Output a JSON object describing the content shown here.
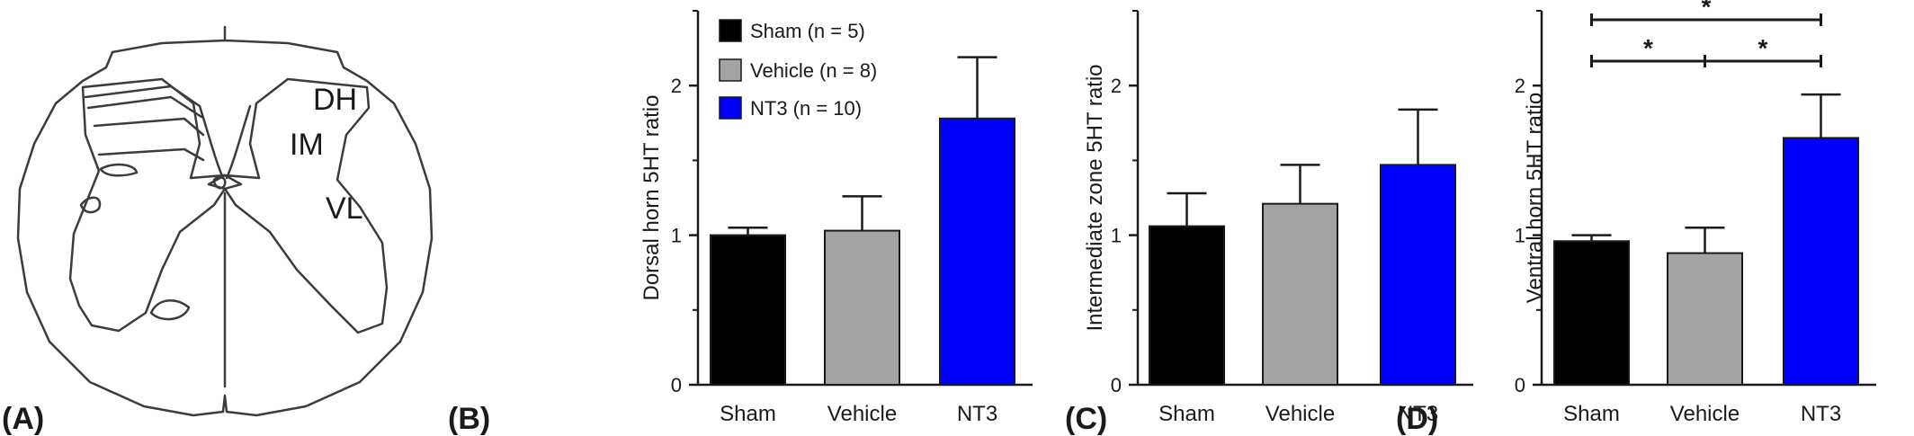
{
  "panels": [
    {
      "letter": "(A)"
    },
    {
      "letter": "(B)"
    },
    {
      "letter": "(C)"
    },
    {
      "letter": "(D)"
    }
  ],
  "diagram": {
    "regions": [
      "DH",
      "IM",
      "VL"
    ]
  },
  "colors": {
    "sham": "#000000",
    "vehicle": "#a3a3a6",
    "nt3": "#0000ff"
  },
  "legend": {
    "entries": [
      {
        "label": "Sham (n = 5)",
        "color": "#000000"
      },
      {
        "label": "Vehicle (n = 8)",
        "color": "#a3a3a6"
      },
      {
        "label": "NT3 (n = 10)",
        "color": "#0000ff"
      }
    ]
  },
  "chart_data": [
    {
      "panel": "(B)",
      "type": "bar",
      "categories": [
        "Sham",
        "Vehicle",
        "NT3"
      ],
      "values": [
        1.0,
        1.03,
        1.78
      ],
      "error": [
        0.05,
        0.23,
        0.41
      ],
      "ylabel": "Dorsal horn 5HT ratio",
      "ylim": [
        0,
        2.5
      ],
      "yticks": [
        "0",
        "1",
        "2"
      ],
      "legend_position": "top-left"
    },
    {
      "panel": "(C)",
      "type": "bar",
      "categories": [
        "Sham",
        "Vehicle",
        "NT3"
      ],
      "values": [
        1.06,
        1.21,
        1.47
      ],
      "error": [
        0.22,
        0.26,
        0.37
      ],
      "ylabel": "Intermediate zone 5HT ratio",
      "ylim": [
        0,
        2.5
      ],
      "yticks": [
        "0",
        "1",
        "2"
      ]
    },
    {
      "panel": "(D)",
      "type": "bar",
      "categories": [
        "Sham",
        "Vehicle",
        "NT3"
      ],
      "values": [
        0.96,
        0.88,
        1.65
      ],
      "error": [
        0.04,
        0.17,
        0.29
      ],
      "ylabel": "Ventral horn 5HT ratio",
      "ylim": [
        0,
        2.5
      ],
      "yticks": [
        "0",
        "1",
        "2"
      ],
      "significance": [
        {
          "from": "Sham",
          "to": "NT3",
          "label": "*"
        },
        {
          "from": "Sham",
          "to": "Vehicle",
          "label": "*"
        },
        {
          "from": "Vehicle",
          "to": "NT3",
          "label": "*"
        }
      ]
    }
  ]
}
